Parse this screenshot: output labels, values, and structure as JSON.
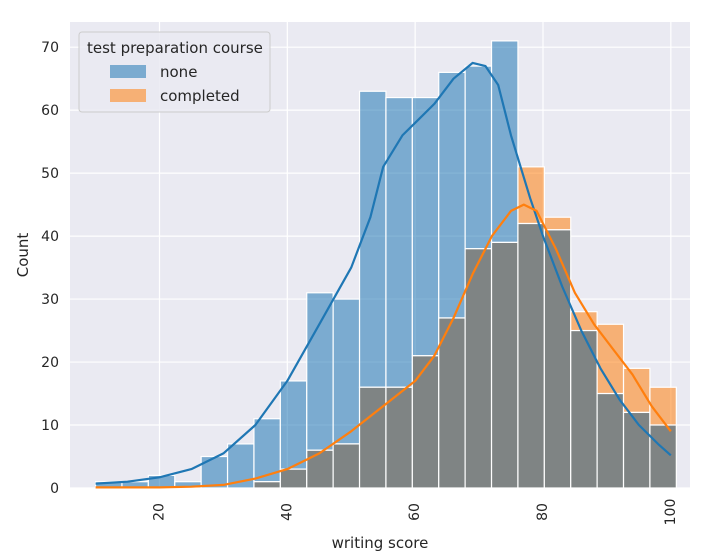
{
  "colors": {
    "none": "#1f77b4",
    "completed": "#ff7f0e",
    "overlap": "#7f8484",
    "plot_bg": "#eaeaf2",
    "grid": "#ffffff"
  },
  "chart_data": {
    "type": "histogram",
    "xlabel": "writing score",
    "ylabel": "Count",
    "xlim": [
      6,
      103
    ],
    "ylim": [
      0,
      74
    ],
    "xticks": [
      20,
      40,
      60,
      80,
      100
    ],
    "yticks": [
      0,
      10,
      20,
      30,
      40,
      50,
      60,
      70
    ],
    "bin_edges": [
      10,
      14.13,
      18.26,
      22.39,
      26.52,
      30.65,
      34.78,
      38.91,
      43.04,
      47.17,
      51.3,
      55.43,
      59.56,
      63.69,
      67.82,
      71.95,
      76.08,
      80.21,
      84.34,
      88.47,
      92.6,
      96.73,
      100.86
    ],
    "legend": {
      "title": "test preparation course",
      "position": "top-left"
    },
    "series": [
      {
        "name": "none",
        "color_key": "none",
        "counts": [
          1,
          1,
          2,
          1,
          5,
          7,
          11,
          17,
          31,
          30,
          63,
          62,
          62,
          66,
          67,
          71,
          42,
          41,
          25,
          15,
          12,
          10
        ],
        "kde": [
          [
            10,
            0.7
          ],
          [
            15,
            1.0
          ],
          [
            20,
            1.7
          ],
          [
            25,
            3
          ],
          [
            30,
            5.5
          ],
          [
            35,
            10
          ],
          [
            40,
            17
          ],
          [
            45,
            26
          ],
          [
            50,
            35
          ],
          [
            53,
            43
          ],
          [
            55,
            51
          ],
          [
            58,
            56
          ],
          [
            60,
            58
          ],
          [
            63,
            61
          ],
          [
            66,
            65
          ],
          [
            69,
            67.5
          ],
          [
            71,
            67
          ],
          [
            73,
            64
          ],
          [
            75,
            56
          ],
          [
            78,
            46
          ],
          [
            80,
            40
          ],
          [
            83,
            32
          ],
          [
            86,
            25
          ],
          [
            89,
            19
          ],
          [
            92,
            14
          ],
          [
            95,
            10
          ],
          [
            98,
            7
          ],
          [
            100,
            5.2
          ]
        ]
      },
      {
        "name": "completed",
        "color_key": "completed",
        "counts": [
          0,
          0,
          0,
          0,
          0,
          0,
          1,
          3,
          6,
          7,
          16,
          16,
          21,
          27,
          38,
          39,
          51,
          43,
          28,
          26,
          19,
          16
        ],
        "kde": [
          [
            10,
            0.1
          ],
          [
            20,
            0.1
          ],
          [
            25,
            0.2
          ],
          [
            30,
            0.5
          ],
          [
            35,
            1.5
          ],
          [
            40,
            3
          ],
          [
            45,
            5.5
          ],
          [
            50,
            9
          ],
          [
            55,
            13
          ],
          [
            60,
            17
          ],
          [
            63,
            21
          ],
          [
            66,
            27
          ],
          [
            69,
            34
          ],
          [
            72,
            40
          ],
          [
            75,
            44
          ],
          [
            77,
            45
          ],
          [
            79,
            44
          ],
          [
            82,
            38
          ],
          [
            85,
            31
          ],
          [
            88,
            26
          ],
          [
            91,
            22
          ],
          [
            94,
            18
          ],
          [
            97,
            13
          ],
          [
            100,
            9
          ]
        ]
      }
    ]
  }
}
